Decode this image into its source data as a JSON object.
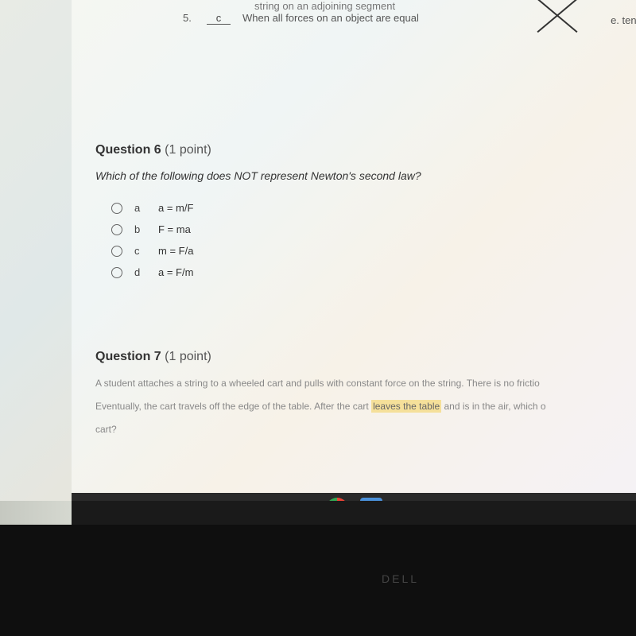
{
  "topFragment": {
    "line1": "string on an adjoining segment",
    "q5num": "5.",
    "q5answer": "c",
    "line2": "When all forces on an object are equal",
    "optionE": "e.   tensi"
  },
  "question6": {
    "title": "Question 6",
    "points": "(1 point)",
    "text": "Which of the following does NOT represent Newton's second law?",
    "options": [
      {
        "letter": "a",
        "text": "a = m/F"
      },
      {
        "letter": "b",
        "text": "F = ma"
      },
      {
        "letter": "c",
        "text": "m = F/a"
      },
      {
        "letter": "d",
        "text": "a = F/m"
      }
    ]
  },
  "question7": {
    "title": "Question 7",
    "points": "(1 point)",
    "text1": "A student attaches a string to a wheeled cart and pulls with constant force on the string. There is no frictio",
    "text2a": "Eventually, the cart travels off the edge of the table.  After the cart ",
    "highlight": "leaves the table",
    "text2b": " and is in the air, which o",
    "text3": "cart?"
  },
  "dell": "DELL",
  "colors": {
    "screen_bg": "#e8ebe5",
    "panel_bg": "#f5f7f2",
    "text_primary": "#333333",
    "text_secondary": "#666666",
    "text_muted": "#888888",
    "taskbar_bg": "#2a2a2a",
    "bezel_bg": "#0f0f0f",
    "highlight_bg": "#f5e09a"
  }
}
